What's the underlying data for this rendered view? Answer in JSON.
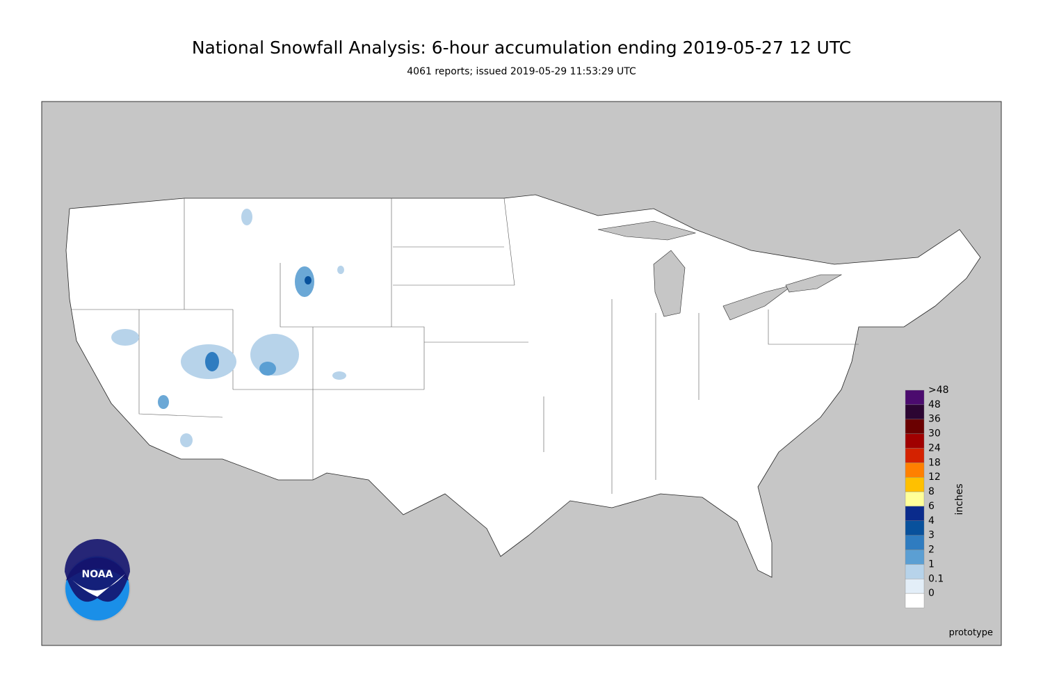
{
  "header": {
    "title": "National Snowfall Analysis: 6-hour accumulation ending 2019-05-27 12 UTC",
    "subtitle": "4061 reports; issued 2019-05-29 11:53:29 UTC"
  },
  "logo": {
    "text": "NOAA"
  },
  "colorbar": {
    "label": "inches",
    "bins": [
      {
        "label": ">48",
        "color": "#4b0b6e"
      },
      {
        "label": "48",
        "color": "#2c0532"
      },
      {
        "label": "36",
        "color": "#6a0000"
      },
      {
        "label": "30",
        "color": "#a00000"
      },
      {
        "label": "24",
        "color": "#d42200"
      },
      {
        "label": "18",
        "color": "#ff8000"
      },
      {
        "label": "12",
        "color": "#ffc000"
      },
      {
        "label": "8",
        "color": "#ffff99"
      },
      {
        "label": "6",
        "color": "#0a2b8c"
      },
      {
        "label": "4",
        "color": "#08519c"
      },
      {
        "label": "3",
        "color": "#2f7cc0"
      },
      {
        "label": "2",
        "color": "#5b9fd3"
      },
      {
        "label": "1",
        "color": "#b7d3ea"
      },
      {
        "label": "0.1",
        "color": "#e3eef8"
      },
      {
        "label": "0",
        "color": "#ffffff"
      }
    ]
  },
  "footer": {
    "note": "prototype"
  }
}
